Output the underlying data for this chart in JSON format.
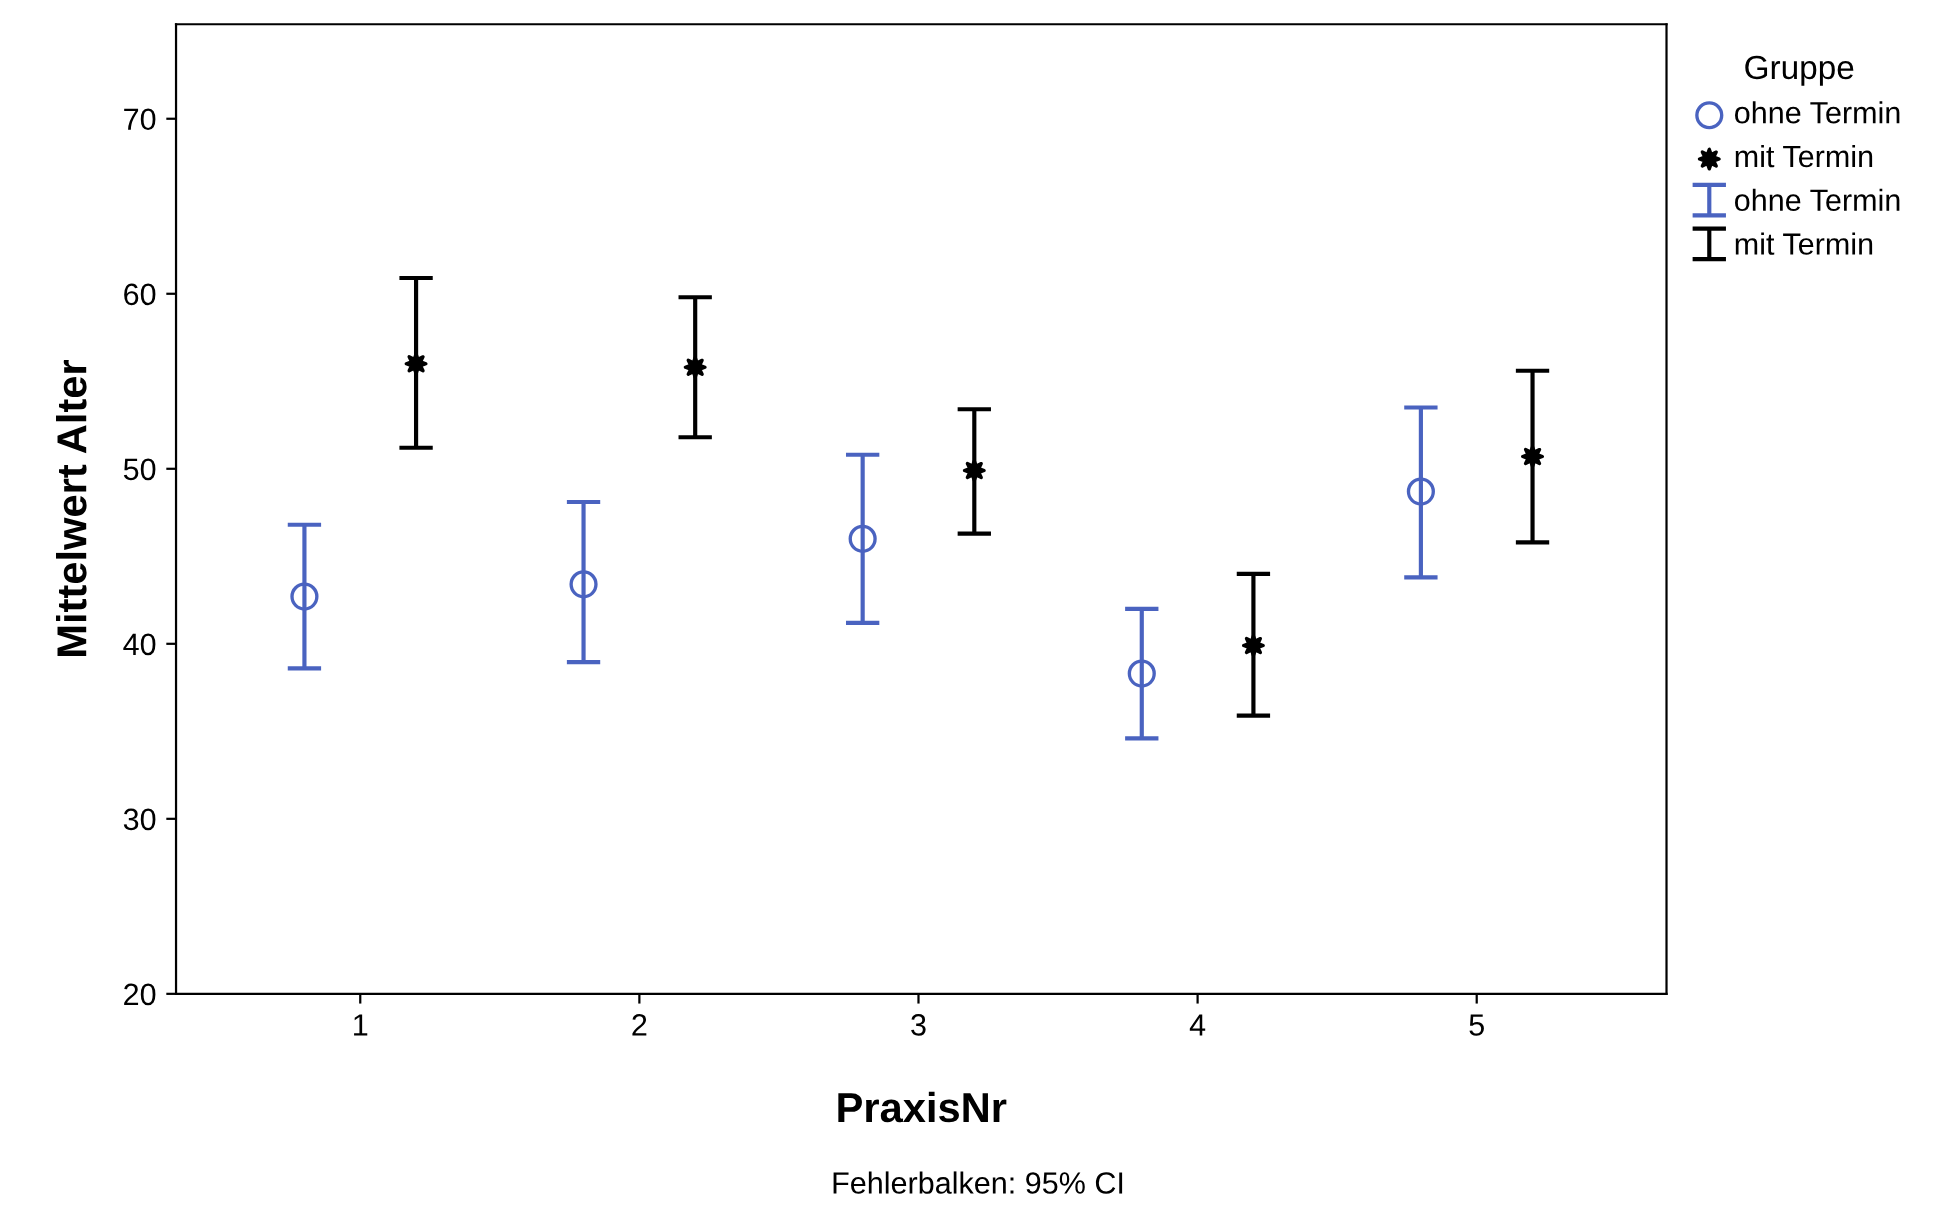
{
  "chart_data": {
    "type": "scatter",
    "xlabel": "PraxisNr",
    "ylabel": "Mittelwert Alter",
    "legend_title": "Gruppe",
    "annotations": [
      "Fehlerbalken: 95% CI"
    ],
    "categories": [
      "1",
      "2",
      "3",
      "4",
      "5"
    ],
    "series": [
      {
        "name": "ohne Termin",
        "color": "#4a63c0",
        "marker": "circle",
        "values": [
          42.7,
          43.4,
          46.0,
          38.3,
          48.7
        ],
        "errors": [
          [
            38.6,
            46.8
          ],
          [
            38.95,
            48.1
          ],
          [
            41.2,
            50.8
          ],
          [
            34.6,
            42.0
          ],
          [
            43.8,
            53.5
          ]
        ]
      },
      {
        "name": "mit Termin",
        "color": "#000000",
        "marker": "star",
        "values": [
          56.0,
          55.8,
          49.9,
          39.9,
          50.7
        ],
        "errors": [
          [
            51.2,
            60.9
          ],
          [
            51.8,
            59.8
          ],
          [
            46.3,
            53.4
          ],
          [
            35.9,
            44.0
          ],
          [
            45.8,
            55.6
          ]
        ]
      }
    ],
    "ylim": [
      20,
      75.4
    ],
    "yticks": [
      20,
      30,
      40,
      50,
      60,
      70
    ],
    "grid": false,
    "legend": "top right"
  }
}
